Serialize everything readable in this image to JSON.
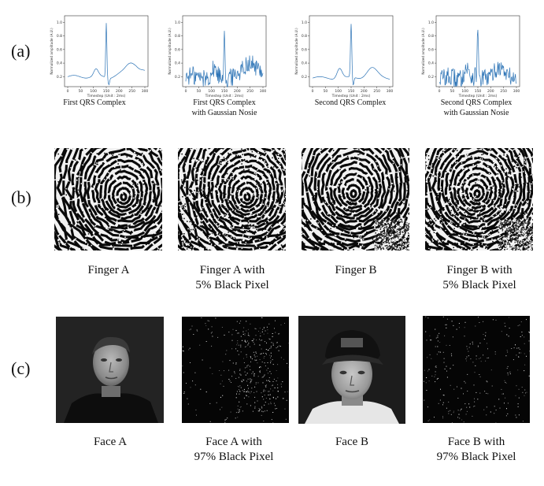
{
  "figure": {
    "row_labels": [
      "(a)",
      "(b)",
      "(c)"
    ],
    "ecg": {
      "x_label": "Timestep (Unit : 2ms)",
      "y_label": "Normalized amplitude (A.U.)",
      "x_ticks": [
        "0",
        "50",
        "100",
        "150",
        "200",
        "250",
        "300"
      ],
      "y_ticks": [
        "0.2",
        "0.4",
        "0.6",
        "0.8",
        "1.0"
      ],
      "line_color": "#2a72b5",
      "panels": [
        {
          "caption": "First QRS Complex",
          "noisy": false,
          "variant": 1
        },
        {
          "caption": "First QRS Complex\nwith Gaussian Nosie",
          "noisy": true,
          "variant": 1
        },
        {
          "caption": "Second QRS Complex",
          "noisy": false,
          "variant": 2
        },
        {
          "caption": "Second QRS Complex\nwith Gaussian Nosie",
          "noisy": true,
          "variant": 2
        }
      ]
    },
    "fingerprints": [
      {
        "caption": "Finger A"
      },
      {
        "caption": "Finger A with\n5% Black Pixel"
      },
      {
        "caption": "Finger B"
      },
      {
        "caption": "Finger B with\n5% Black Pixel"
      }
    ],
    "faces": [
      {
        "caption": "Face A"
      },
      {
        "caption": "Face A with\n97% Black Pixel"
      },
      {
        "caption": "Face B"
      },
      {
        "caption": "Face B with\n97% Black Pixel"
      }
    ]
  }
}
